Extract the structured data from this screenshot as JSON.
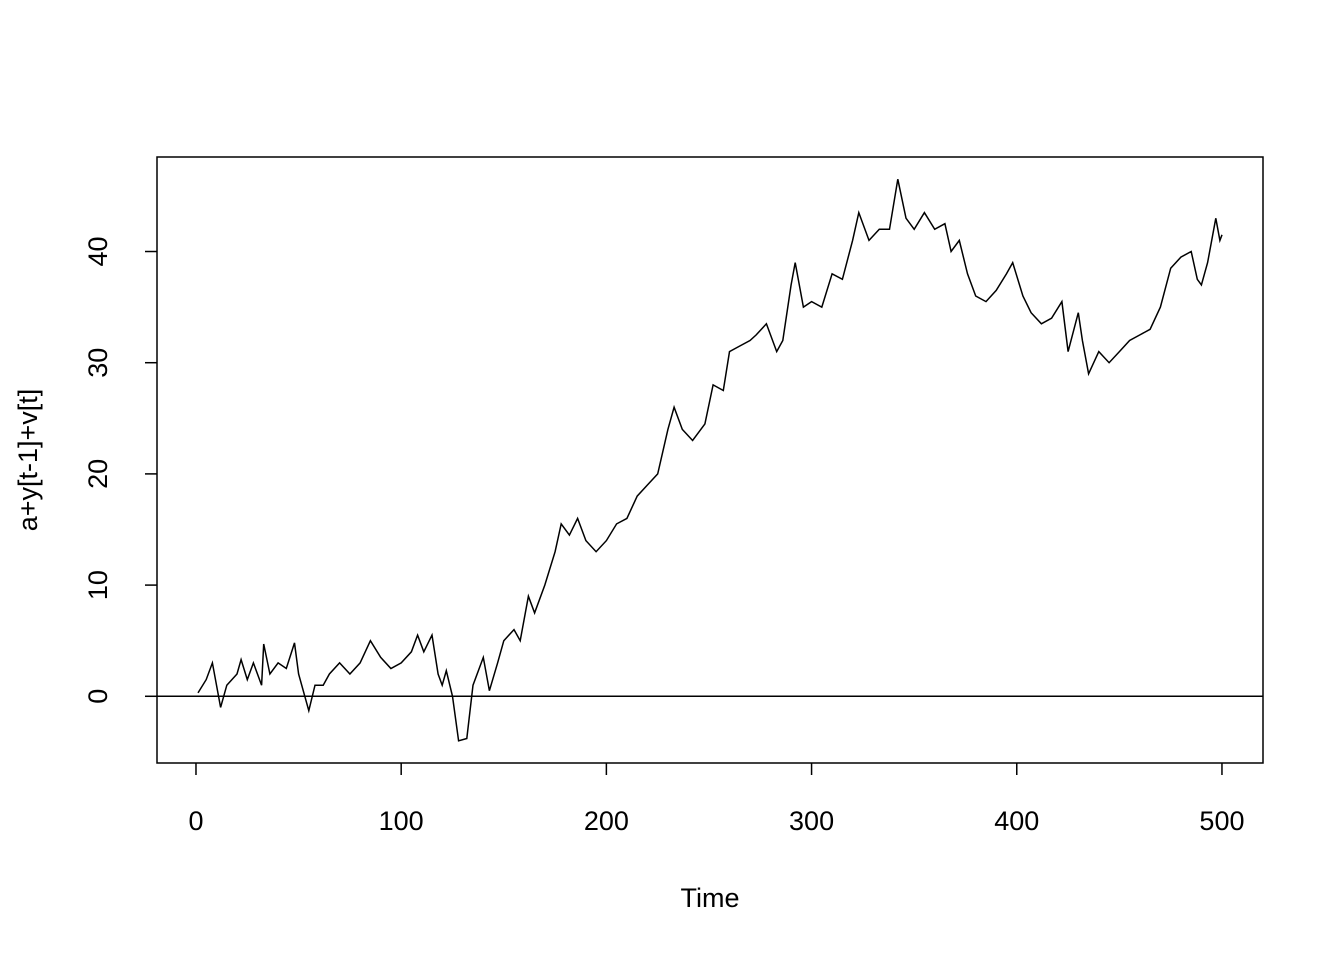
{
  "chart_data": {
    "type": "line",
    "xlabel": "Time",
    "ylabel": "a+y[t-1]+v[t]",
    "x": [
      1,
      5,
      8,
      12,
      15,
      20,
      22,
      25,
      28,
      32,
      33,
      36,
      40,
      44,
      48,
      50,
      55,
      58,
      62,
      65,
      70,
      75,
      80,
      85,
      90,
      95,
      100,
      105,
      108,
      111,
      115,
      118,
      120,
      122,
      125,
      128,
      132,
      135,
      140,
      143,
      147,
      150,
      155,
      158,
      162,
      165,
      170,
      175,
      178,
      182,
      186,
      190,
      195,
      200,
      205,
      210,
      215,
      220,
      225,
      230,
      233,
      237,
      242,
      248,
      252,
      257,
      260,
      265,
      270,
      273,
      278,
      283,
      286,
      290,
      292,
      296,
      300,
      305,
      310,
      315,
      320,
      323,
      328,
      333,
      338,
      342,
      346,
      350,
      355,
      360,
      365,
      368,
      372,
      376,
      380,
      385,
      390,
      395,
      398,
      403,
      407,
      412,
      417,
      422,
      425,
      430,
      432,
      435,
      440,
      445,
      450,
      455,
      460,
      465,
      470,
      475,
      480,
      485,
      488,
      490,
      493,
      497,
      499,
      500
    ],
    "series": [
      {
        "color": "#000000",
        "values": [
          0.3,
          1.5,
          3,
          -1,
          1,
          2,
          3.3,
          1.5,
          3,
          1,
          4.7,
          2,
          3,
          2.5,
          4.8,
          2,
          -1.3,
          1,
          1,
          2,
          3,
          2,
          3,
          5,
          3.5,
          2.5,
          3,
          4,
          5.5,
          4,
          5.5,
          2,
          1,
          2.3,
          0,
          -4,
          -3.8,
          1,
          3.5,
          0.5,
          3,
          5,
          6,
          5,
          9,
          7.5,
          10,
          13,
          15.5,
          14.5,
          16,
          14,
          13,
          14,
          15.5,
          16,
          18,
          19,
          20,
          24,
          26,
          24,
          23,
          24.5,
          28,
          27.5,
          31,
          31.5,
          32,
          32.5,
          33.5,
          31,
          32,
          37,
          39,
          35,
          35.5,
          35,
          38,
          37.5,
          41,
          43.5,
          41,
          42,
          42,
          46.5,
          43,
          42,
          43.5,
          42,
          42.5,
          40,
          41,
          38,
          36,
          35.5,
          36.5,
          38,
          39,
          36,
          34.5,
          33.5,
          34,
          35.5,
          31,
          34.5,
          32,
          29,
          31,
          30,
          31,
          32,
          32.5,
          33,
          35,
          38.5,
          39.5,
          40,
          37.5,
          37,
          39,
          43,
          41,
          41.5
        ]
      }
    ],
    "xlim": [
      -19,
      520
    ],
    "ylim": [
      -6,
      48.5
    ],
    "xticks": [
      0,
      100,
      200,
      300,
      400,
      500
    ],
    "yticks": [
      0,
      10,
      20,
      30,
      40
    ],
    "hline": 0
  }
}
